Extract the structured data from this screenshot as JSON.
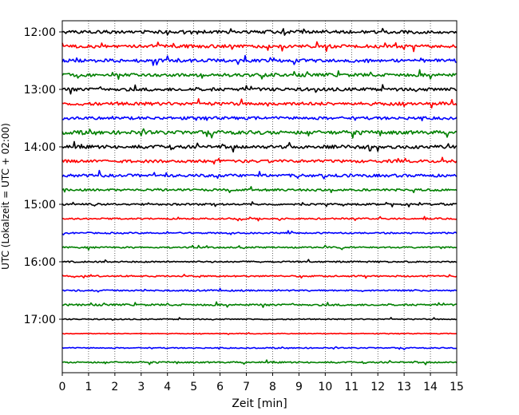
{
  "chart_data": {
    "type": "line",
    "xlabel": "Zeit  [min]",
    "ylabel": "UTC (Lokalzeit = UTC + 02:00)",
    "xlim": [
      0,
      15
    ],
    "x_ticks": [
      "0",
      "1",
      "2",
      "3",
      "4",
      "5",
      "6",
      "7",
      "8",
      "9",
      "10",
      "11",
      "12",
      "13",
      "14",
      "15"
    ],
    "y_tick_labels": [
      "12:00",
      "13:00",
      "14:00",
      "15:00",
      "16:00",
      "17:00"
    ],
    "grid": "vertical dotted",
    "trace_colors": [
      "#000000",
      "#ff0000",
      "#0000ff",
      "#008000"
    ],
    "traces": [
      {
        "start": "12:00",
        "amplitude": 0.9
      },
      {
        "start": "12:15",
        "amplitude": 0.9
      },
      {
        "start": "12:30",
        "amplitude": 0.9
      },
      {
        "start": "12:45",
        "amplitude": 0.9
      },
      {
        "start": "13:00",
        "amplitude": 0.9
      },
      {
        "start": "13:15",
        "amplitude": 0.9
      },
      {
        "start": "13:30",
        "amplitude": 0.8
      },
      {
        "start": "13:45",
        "amplitude": 1.0
      },
      {
        "start": "14:00",
        "amplitude": 0.9
      },
      {
        "start": "14:15",
        "amplitude": 0.8
      },
      {
        "start": "14:30",
        "amplitude": 0.8
      },
      {
        "start": "14:45",
        "amplitude": 0.6
      },
      {
        "start": "15:00",
        "amplitude": 0.5
      },
      {
        "start": "15:15",
        "amplitude": 0.4
      },
      {
        "start": "15:30",
        "amplitude": 0.4
      },
      {
        "start": "15:45",
        "amplitude": 0.4
      },
      {
        "start": "16:00",
        "amplitude": 0.4
      },
      {
        "start": "16:15",
        "amplitude": 0.4
      },
      {
        "start": "16:30",
        "amplitude": 0.4
      },
      {
        "start": "16:45",
        "amplitude": 0.5
      },
      {
        "start": "17:00",
        "amplitude": 0.3
      },
      {
        "start": "17:15",
        "amplitude": 0.2
      },
      {
        "start": "17:30",
        "amplitude": 0.3
      },
      {
        "start": "17:45",
        "amplitude": 0.4
      }
    ]
  }
}
